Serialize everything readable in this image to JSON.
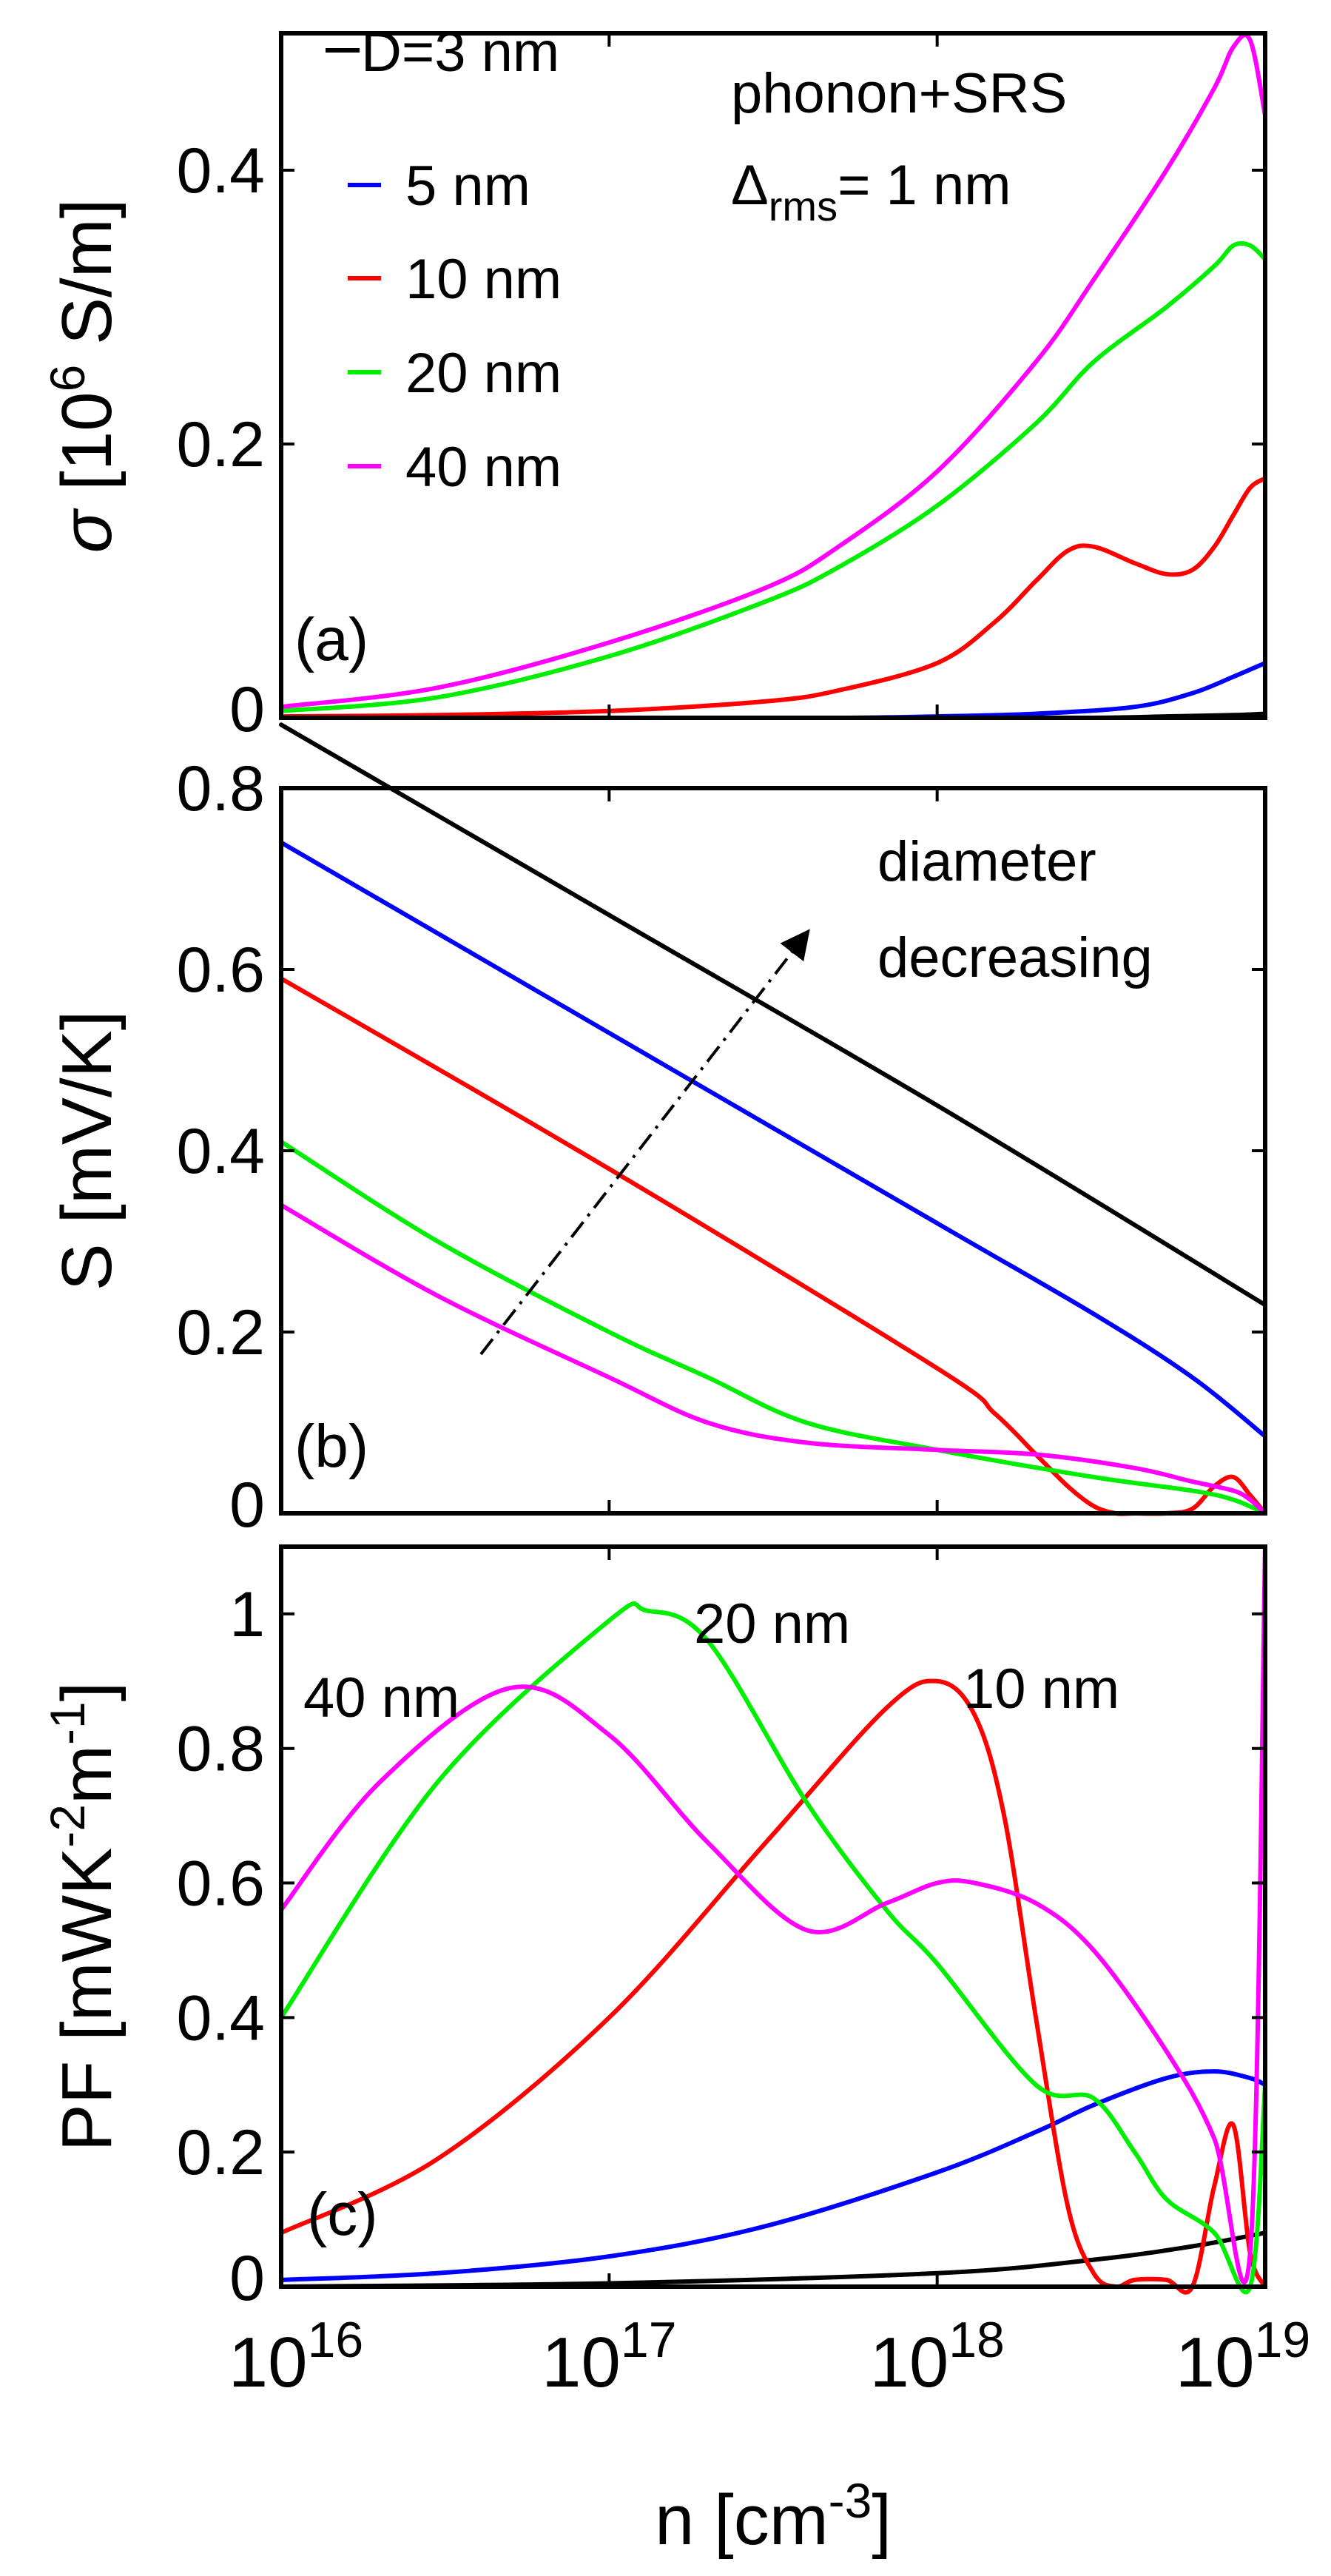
{
  "chart_data": [
    {
      "panel": "(a)",
      "type": "line",
      "ylabel_sym": "σ",
      "ylabel_pre": "[10",
      "ylabel_exp": "6",
      "ylabel_post": " S/m]",
      "xscale": "log",
      "xlim": [
        1e+16,
        1e+19
      ],
      "ylim": [
        0,
        0.5
      ],
      "yticks": [
        0,
        0.2,
        0.4
      ],
      "ytick_labels": [
        "0",
        "0.2",
        "0.4"
      ],
      "legend": [
        "D=3 nm",
        "5 nm",
        "10 nm",
        "20 nm",
        "40 nm"
      ],
      "annotation_line1": "phonon+SRS",
      "annotation_line2_sym": "Δ",
      "annotation_line2_sub": "rms",
      "annotation_line2_rest": "= 1 nm",
      "series": [
        {
          "name": "D=3 nm",
          "color": "#000000",
          "x": [
            1e+16,
            1e+17,
            1e+18,
            3e+18,
            5e+18,
            8e+18,
            1e+19
          ],
          "values": [
            0,
            0,
            0,
            0,
            0.001,
            0.002,
            0.003
          ]
        },
        {
          "name": "5 nm",
          "color": "#0000ff",
          "x": [
            1e+16,
            1e+17,
            5e+17,
            1e+18,
            2e+18,
            4e+18,
            6e+18,
            8e+18,
            1e+19
          ],
          "values": [
            0,
            0,
            0,
            0.001,
            0.003,
            0.008,
            0.018,
            0.03,
            0.04
          ]
        },
        {
          "name": "10 nm",
          "color": "#ff0000",
          "x": [
            1e+16,
            3e+16,
            1e+17,
            3e+17,
            5e+17,
            1e+18,
            1.5e+18,
            2e+18,
            2.5e+18,
            3e+18,
            4e+18,
            5e+18,
            6e+18,
            7e+18,
            8e+18,
            9e+18,
            1e+19
          ],
          "values": [
            0.001,
            0.002,
            0.005,
            0.012,
            0.02,
            0.04,
            0.07,
            0.1,
            0.122,
            0.125,
            0.113,
            0.105,
            0.108,
            0.125,
            0.148,
            0.168,
            0.175
          ]
        },
        {
          "name": "20 nm",
          "color": "#00ee00",
          "x": [
            1e+16,
            3e+16,
            1e+17,
            3e+17,
            5e+17,
            1e+18,
            2e+18,
            3e+18,
            5e+18,
            7e+18,
            8e+18,
            9e+18,
            1e+19
          ],
          "values": [
            0.005,
            0.015,
            0.045,
            0.085,
            0.11,
            0.155,
            0.215,
            0.26,
            0.3,
            0.33,
            0.345,
            0.345,
            0.335
          ]
        },
        {
          "name": "40 nm",
          "color": "#ff00ff",
          "x": [
            1e+16,
            3e+16,
            1e+17,
            3e+17,
            5e+17,
            1e+18,
            2e+18,
            3e+18,
            5e+18,
            7e+18,
            8e+18,
            9e+18,
            1e+19
          ],
          "values": [
            0.008,
            0.022,
            0.055,
            0.095,
            0.125,
            0.18,
            0.26,
            0.32,
            0.4,
            0.46,
            0.49,
            0.495,
            0.44
          ]
        }
      ]
    },
    {
      "panel": "(b)",
      "type": "line",
      "ylabel": "S [mV/K]",
      "xscale": "log",
      "xlim": [
        1e+16,
        1e+19
      ],
      "ylim": [
        0,
        0.8
      ],
      "yticks": [
        0,
        0.2,
        0.4,
        0.6,
        0.8
      ],
      "ytick_labels": [
        "0",
        "0.2",
        "0.4",
        "0.6",
        "0.8"
      ],
      "annotation_line1": "diameter",
      "annotation_line2": "decreasing",
      "series": [
        {
          "name": "D=3 nm",
          "color": "#000000",
          "x": [
            1e+16,
            1e+17,
            1e+18,
            1e+19
          ],
          "values": [
            0.87,
            0.66,
            0.45,
            0.23
          ]
        },
        {
          "name": "5 nm",
          "color": "#0000ff",
          "x": [
            1e+16,
            1e+17,
            1e+18,
            3e+18,
            6e+18,
            1e+19
          ],
          "values": [
            0.74,
            0.53,
            0.32,
            0.22,
            0.15,
            0.085
          ]
        },
        {
          "name": "10 nm",
          "color": "#ff0000",
          "x": [
            1e+16,
            1e+17,
            1e+18,
            1.5e+18,
            2e+18,
            2.5e+18,
            3e+18,
            3.5e+18,
            4e+18,
            5e+18,
            6e+18,
            7e+18,
            8e+18,
            9e+18,
            1e+19
          ],
          "values": [
            0.59,
            0.38,
            0.16,
            0.11,
            0.065,
            0.03,
            0.008,
            0,
            0,
            0,
            0.005,
            0.03,
            0.04,
            0.02,
            0
          ]
        },
        {
          "name": "20 nm",
          "color": "#00ee00",
          "x": [
            1e+16,
            3e+16,
            1e+17,
            2e+17,
            4e+17,
            1e+18,
            3e+18,
            6e+18,
            8e+18,
            1e+19
          ],
          "values": [
            0.41,
            0.3,
            0.2,
            0.15,
            0.1,
            0.07,
            0.04,
            0.025,
            0.015,
            0
          ]
        },
        {
          "name": "40 nm",
          "color": "#ff00ff",
          "x": [
            1e+16,
            3e+16,
            1e+17,
            2e+17,
            4e+17,
            1e+18,
            2e+18,
            4e+18,
            6e+18,
            8e+18,
            9e+18,
            1e+19
          ],
          "values": [
            0.34,
            0.24,
            0.15,
            0.1,
            0.078,
            0.07,
            0.065,
            0.05,
            0.035,
            0.025,
            0.015,
            0
          ]
        }
      ]
    },
    {
      "panel": "(c)",
      "type": "line",
      "ylabel_pre": "PF [mWK",
      "ylabel_exp1": "-2",
      "ylabel_mid": "m",
      "ylabel_exp2": "-1",
      "ylabel_post": "]",
      "xlabel_pre": "n [cm",
      "xlabel_exp": "-3",
      "xlabel_post": "]",
      "xscale": "log",
      "xlim": [
        1e+16,
        1e+19
      ],
      "ylim": [
        0,
        1.1
      ],
      "yticks": [
        0,
        0.2,
        0.4,
        0.6,
        0.8,
        1
      ],
      "ytick_labels": [
        "0",
        "0.2",
        "0.4",
        "0.6",
        "0.8",
        "1"
      ],
      "xticks": [
        1e+16,
        1e+17,
        1e+18,
        1e+19
      ],
      "xtick_base": "10",
      "xtick_exps": [
        "16",
        "17",
        "18",
        "19"
      ],
      "label_40": "40 nm",
      "label_20": "20 nm",
      "label_10": "10 nm",
      "series": [
        {
          "name": "D=3 nm",
          "color": "#000000",
          "x": [
            1e+16,
            1e+17,
            1e+18,
            3e+18,
            6e+18,
            1e+19
          ],
          "values": [
            0,
            0.005,
            0.02,
            0.04,
            0.06,
            0.08
          ]
        },
        {
          "name": "5 nm",
          "color": "#0000ff",
          "x": [
            1e+16,
            3e+16,
            1e+17,
            3e+17,
            1e+18,
            2e+18,
            3e+18,
            5e+18,
            7e+18,
            9e+18,
            1e+19
          ],
          "values": [
            0.01,
            0.02,
            0.045,
            0.09,
            0.17,
            0.23,
            0.27,
            0.31,
            0.32,
            0.31,
            0.3
          ]
        },
        {
          "name": "10 nm",
          "color": "#ff0000",
          "x": [
            1e+16,
            3e+16,
            1e+17,
            3e+17,
            7e+17,
            1e+18,
            1.3e+18,
            1.6e+18,
            2e+18,
            2.5e+18,
            3e+18,
            3.5e+18,
            4e+18,
            5e+18,
            6e+18,
            7e+18,
            8e+18,
            9e+18,
            1e+19
          ],
          "values": [
            0.08,
            0.19,
            0.4,
            0.66,
            0.86,
            0.9,
            0.85,
            0.7,
            0.4,
            0.12,
            0.02,
            0,
            0.01,
            0.01,
            0,
            0.15,
            0.24,
            0.05,
            0
          ]
        },
        {
          "name": "20 nm",
          "color": "#00ee00",
          "x": [
            1e+16,
            3e+16,
            1e+17,
            1.3e+17,
            2e+17,
            4e+17,
            7e+17,
            1e+18,
            2e+18,
            3e+18,
            4e+18,
            5e+18,
            7e+18,
            9e+18,
            1e+19
          ],
          "values": [
            0.4,
            0.75,
            0.99,
            1.005,
            0.96,
            0.72,
            0.56,
            0.48,
            0.3,
            0.28,
            0.2,
            0.13,
            0.08,
            0,
            0.3
          ]
        },
        {
          "name": "40 nm",
          "color": "#ff00ff",
          "x": [
            1e+16,
            2e+16,
            5e+16,
            1e+17,
            2e+17,
            4e+17,
            7e+17,
            1e+18,
            1.3e+18,
            2e+18,
            3e+18,
            5e+18,
            7e+18,
            9e+18,
            1e+19
          ],
          "values": [
            0.56,
            0.75,
            0.89,
            0.82,
            0.66,
            0.53,
            0.57,
            0.6,
            0.6,
            0.57,
            0.5,
            0.35,
            0.22,
            0.05,
            1.1
          ]
        }
      ]
    }
  ]
}
